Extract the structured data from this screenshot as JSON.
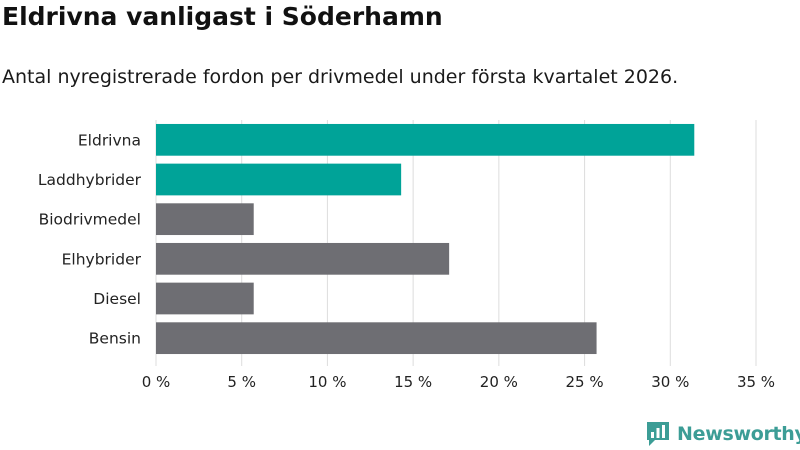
{
  "title": "Eldrivna vanligast i Söderhamn",
  "subtitle": "Antal nyregistrerade fordon per drivmedel under första kvartalet 2026.",
  "branding": {
    "logo_text": "Newsworthy",
    "logo_icon": "bar-chart-speech-bubble-icon"
  },
  "colors": {
    "highlight": "#00a398",
    "default": "#6e6e73",
    "grid": "#dddddd",
    "logo": "#3c9d96"
  },
  "chart_data": {
    "type": "bar",
    "orientation": "horizontal",
    "categories": [
      "Eldrivna",
      "Laddhybrider",
      "Biodrivmedel",
      "Elhybrider",
      "Diesel",
      "Bensin"
    ],
    "values": [
      31.4,
      14.3,
      5.7,
      17.1,
      5.7,
      25.7
    ],
    "highlighted": [
      true,
      true,
      false,
      false,
      false,
      false
    ],
    "unit": "%",
    "xlim": [
      0,
      35
    ],
    "xticks": [
      0,
      5,
      10,
      15,
      20,
      25,
      30,
      35
    ],
    "xtick_labels": [
      "0 %",
      "5 %",
      "10 %",
      "15 %",
      "20 %",
      "25 %",
      "30 %",
      "35 %"
    ],
    "grid": "vertical",
    "legend": "none"
  }
}
